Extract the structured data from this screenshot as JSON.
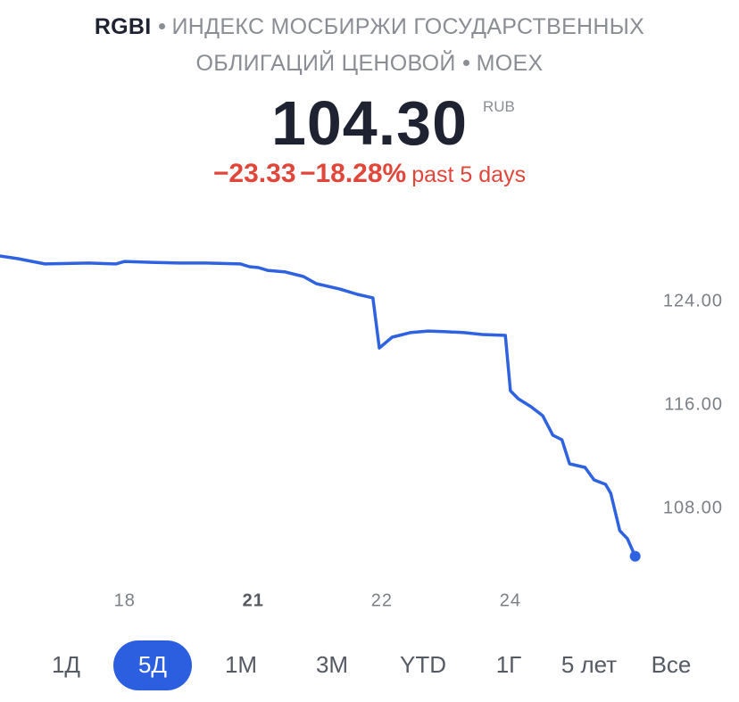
{
  "chart_data": {
    "type": "line",
    "ticker": "RGBI",
    "title": "ИНДЕКС МОСБИРЖИ ГОСУДАРСТВЕННЫХ ОБЛИГАЦИЙ ЦЕНОВОЙ",
    "exchange": "MOEX",
    "price": "104.30",
    "currency": "RUB",
    "change": "−23.33",
    "change_percent": "−18.28%",
    "period": "past 5 days",
    "x": [
      0.03,
      0.17,
      0.24,
      0.38,
      0.72,
      0.93,
      1.0,
      1.21,
      1.42,
      1.63,
      1.9,
      1.97,
      2.04,
      2.11,
      2.25,
      2.39,
      2.49,
      2.67,
      2.81,
      2.93,
      2.98,
      3.08,
      3.22,
      3.36,
      3.5,
      3.64,
      3.78,
      3.96,
      4.0,
      4.06,
      4.16,
      4.25,
      4.33,
      4.4,
      4.46,
      4.58,
      4.65,
      4.74,
      4.78,
      4.85,
      4.91,
      4.97
    ],
    "series": [
      {
        "color": "#2f62e0",
        "values": [
          127.52,
          127.31,
          127.17,
          126.9,
          126.97,
          126.9,
          127.1,
          127.03,
          126.97,
          126.97,
          126.9,
          126.69,
          126.62,
          126.41,
          126.28,
          125.93,
          125.38,
          124.97,
          124.55,
          124.28,
          120.41,
          121.24,
          121.59,
          121.72,
          121.66,
          121.59,
          121.45,
          121.38,
          117.1,
          116.48,
          115.86,
          115.17,
          113.66,
          113.31,
          111.45,
          111.17,
          110.21,
          109.86,
          109.17,
          106.28,
          105.66,
          104.3
        ]
      }
    ],
    "xlim": [
      0.03,
      5.0
    ],
    "xticks": [
      {
        "value": 1,
        "label": "18"
      },
      {
        "value": 2,
        "label": "21"
      },
      {
        "value": 3,
        "label": "22"
      },
      {
        "value": 4,
        "label": "24"
      }
    ],
    "ylim": [
      102,
      131
    ],
    "yticks": [
      {
        "value": 124,
        "label": "124.00"
      },
      {
        "value": 116,
        "label": "116.00"
      },
      {
        "value": 108,
        "label": "108.00"
      }
    ],
    "grid": false,
    "end_marker": true,
    "change_color": "#e0463a"
  },
  "range_buttons": {
    "labels": [
      "1Д",
      "5Д",
      "1М",
      "3М",
      "YTD",
      "1Г",
      "5 лет",
      "Все"
    ],
    "selected": 1,
    "selected_color": "#2c5fe0"
  }
}
